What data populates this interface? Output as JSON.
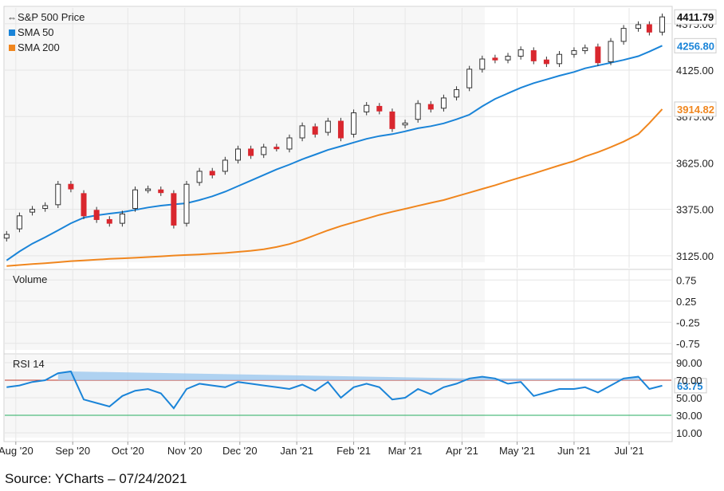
{
  "source_note": "Source: YCharts – 07/24/2021",
  "colors": {
    "price_up": "#ffffff",
    "price_down": "#d9272e",
    "sma50": "#1a84d8",
    "sma200": "#f0861e",
    "rsi": "#1a84d8",
    "overbought_line": "#c0392b",
    "oversold_line": "#27ae60",
    "grid": "#e6e6e6"
  },
  "x_axis": {
    "tick_labels": [
      "Aug '20",
      "Sep '20",
      "Oct '20",
      "Nov '20",
      "Dec '20",
      "Jan '21",
      "Feb '21",
      "Mar '21",
      "Apr '21",
      "May '21",
      "Jun '21",
      "Jul '21"
    ],
    "tick_dates": [
      "2020-08-01",
      "2020-09-01",
      "2020-10-01",
      "2020-11-01",
      "2020-12-01",
      "2021-01-01",
      "2021-02-01",
      "2021-03-01",
      "2021-04-01",
      "2021-05-01",
      "2021-06-01",
      "2021-07-01"
    ],
    "start_date": "2020-07-26",
    "end_date": "2021-07-24"
  },
  "chart_data": [
    {
      "type": "line",
      "title": "",
      "legend": [
        {
          "name": "S&P 500 Price",
          "marker": "candle-icon"
        },
        {
          "name": "SMA 50",
          "color": "#1a84d8"
        },
        {
          "name": "SMA 200",
          "color": "#f0861e"
        }
      ],
      "y_ticks": [
        3125.0,
        3375.0,
        3625.0,
        3875.0,
        4125.0,
        4375.0
      ],
      "y_tick_labels": [
        "3125.00",
        "3375.00",
        "3625.00",
        "3875.00",
        "4125.00",
        "4375.00"
      ],
      "ylim": [
        3060,
        4460
      ],
      "last_values": [
        {
          "label": "4411.79",
          "value": 4411.79,
          "color": "#111111",
          "bg": "#ffffff"
        },
        {
          "label": "4256.80",
          "value": 4256.8,
          "color": "#1a84d8",
          "bg": "#ffffff"
        },
        {
          "label": "3914.82",
          "value": 3914.82,
          "color": "#f0861e",
          "bg": "#ffffff"
        }
      ],
      "series": [
        {
          "name": "S&P 500 Price",
          "kind": "candlestick",
          "x": [
            "2020-07-27",
            "2020-08-03",
            "2020-08-10",
            "2020-08-17",
            "2020-08-24",
            "2020-08-31",
            "2020-09-07",
            "2020-09-14",
            "2020-09-21",
            "2020-09-28",
            "2020-10-05",
            "2020-10-12",
            "2020-10-19",
            "2020-10-26",
            "2020-11-02",
            "2020-11-09",
            "2020-11-16",
            "2020-11-23",
            "2020-11-30",
            "2020-12-07",
            "2020-12-14",
            "2020-12-21",
            "2020-12-28",
            "2021-01-04",
            "2021-01-11",
            "2021-01-18",
            "2021-01-25",
            "2021-02-01",
            "2021-02-08",
            "2021-02-15",
            "2021-02-22",
            "2021-03-01",
            "2021-03-08",
            "2021-03-15",
            "2021-03-22",
            "2021-03-29",
            "2021-04-05",
            "2021-04-12",
            "2021-04-19",
            "2021-04-26",
            "2021-05-03",
            "2021-05-10",
            "2021-05-17",
            "2021-05-24",
            "2021-06-01",
            "2021-06-07",
            "2021-06-14",
            "2021-06-21",
            "2021-06-28",
            "2021-07-06",
            "2021-07-12",
            "2021-07-19"
          ],
          "values": [
            3240,
            3340,
            3375,
            3395,
            3510,
            3485,
            3340,
            3320,
            3300,
            3350,
            3480,
            3485,
            3465,
            3290,
            3510,
            3580,
            3560,
            3640,
            3700,
            3665,
            3710,
            3705,
            3760,
            3825,
            3780,
            3850,
            3760,
            3895,
            3935,
            3905,
            3810,
            3840,
            3945,
            3915,
            3975,
            4020,
            4130,
            4185,
            4180,
            4200,
            4235,
            4175,
            4160,
            4210,
            4230,
            4245,
            4165,
            4280,
            4350,
            4370,
            4330,
            4411.79
          ],
          "open": [
            3220,
            3270,
            3360,
            3380,
            3400,
            3510,
            3460,
            3370,
            3320,
            3300,
            3380,
            3480,
            3480,
            3460,
            3300,
            3520,
            3580,
            3580,
            3640,
            3700,
            3670,
            3710,
            3700,
            3760,
            3820,
            3790,
            3850,
            3780,
            3900,
            3930,
            3900,
            3830,
            3860,
            3940,
            3920,
            3980,
            4030,
            4130,
            4190,
            4180,
            4200,
            4230,
            4180,
            4160,
            4210,
            4230,
            4250,
            4170,
            4280,
            4350,
            4370,
            4330
          ]
        },
        {
          "name": "SMA 50",
          "values": [
            3100,
            3148,
            3190,
            3225,
            3262,
            3300,
            3330,
            3343,
            3352,
            3360,
            3372,
            3385,
            3395,
            3402,
            3408,
            3425,
            3445,
            3470,
            3500,
            3530,
            3560,
            3590,
            3616,
            3645,
            3670,
            3695,
            3715,
            3735,
            3755,
            3770,
            3780,
            3795,
            3812,
            3823,
            3838,
            3860,
            3885,
            3930,
            3970,
            4000,
            4030,
            4055,
            4075,
            4095,
            4115,
            4135,
            4150,
            4165,
            4180,
            4200,
            4225,
            4256.8
          ]
        },
        {
          "name": "SMA 200",
          "values": [
            3070,
            3075,
            3080,
            3085,
            3090,
            3096,
            3100,
            3104,
            3108,
            3111,
            3114,
            3118,
            3122,
            3126,
            3129,
            3132,
            3136,
            3140,
            3146,
            3152,
            3160,
            3172,
            3188,
            3210,
            3236,
            3262,
            3285,
            3305,
            3325,
            3345,
            3362,
            3378,
            3394,
            3410,
            3425,
            3445,
            3465,
            3485,
            3505,
            3527,
            3548,
            3568,
            3590,
            3612,
            3635,
            3660,
            3683,
            3710,
            3740,
            3780,
            3840,
            3914.82
          ]
        }
      ]
    },
    {
      "type": "line",
      "title": "",
      "legend": [
        {
          "name": "Volume"
        }
      ],
      "y_ticks": [
        0.75,
        0.25,
        -0.25,
        -0.75
      ],
      "y_tick_labels": [
        "0.75",
        "0.25",
        "-0.25",
        "-0.75"
      ],
      "ylim": [
        -1,
        1
      ],
      "series": []
    },
    {
      "type": "line",
      "title": "",
      "legend": [
        {
          "name": "RSI 14"
        }
      ],
      "y_ticks": [
        90,
        70,
        50,
        30,
        10
      ],
      "y_tick_labels": [
        "90.00",
        "70.00",
        "50.00",
        "30.00",
        "10.00"
      ],
      "ylim": [
        0,
        100
      ],
      "overbought": 70,
      "oversold": 30,
      "last_value": {
        "label": "63.75",
        "value": 63.75
      },
      "series": [
        {
          "name": "RSI 14",
          "x": [
            "2020-07-27",
            "2020-08-03",
            "2020-08-10",
            "2020-08-17",
            "2020-08-24",
            "2020-08-31",
            "2020-09-07",
            "2020-09-14",
            "2020-09-21",
            "2020-09-28",
            "2020-10-05",
            "2020-10-12",
            "2020-10-19",
            "2020-10-26",
            "2020-11-02",
            "2020-11-09",
            "2020-11-16",
            "2020-11-23",
            "2020-11-30",
            "2020-12-07",
            "2020-12-14",
            "2020-12-21",
            "2020-12-28",
            "2021-01-04",
            "2021-01-11",
            "2021-01-18",
            "2021-01-25",
            "2021-02-01",
            "2021-02-08",
            "2021-02-15",
            "2021-02-22",
            "2021-03-01",
            "2021-03-08",
            "2021-03-15",
            "2021-03-22",
            "2021-03-29",
            "2021-04-05",
            "2021-04-12",
            "2021-04-19",
            "2021-04-26",
            "2021-05-03",
            "2021-05-10",
            "2021-05-17",
            "2021-05-24",
            "2021-06-01",
            "2021-06-07",
            "2021-06-14",
            "2021-06-21",
            "2021-06-28",
            "2021-07-06",
            "2021-07-12",
            "2021-07-19"
          ],
          "values": [
            62,
            64,
            68,
            70,
            78,
            80,
            48,
            44,
            40,
            52,
            58,
            60,
            55,
            38,
            60,
            66,
            64,
            62,
            68,
            66,
            64,
            62,
            60,
            65,
            58,
            68,
            50,
            62,
            66,
            62,
            48,
            50,
            60,
            54,
            62,
            66,
            72,
            74,
            72,
            66,
            68,
            52,
            56,
            60,
            60,
            62,
            56,
            64,
            72,
            74,
            60,
            63.75
          ]
        }
      ]
    }
  ]
}
